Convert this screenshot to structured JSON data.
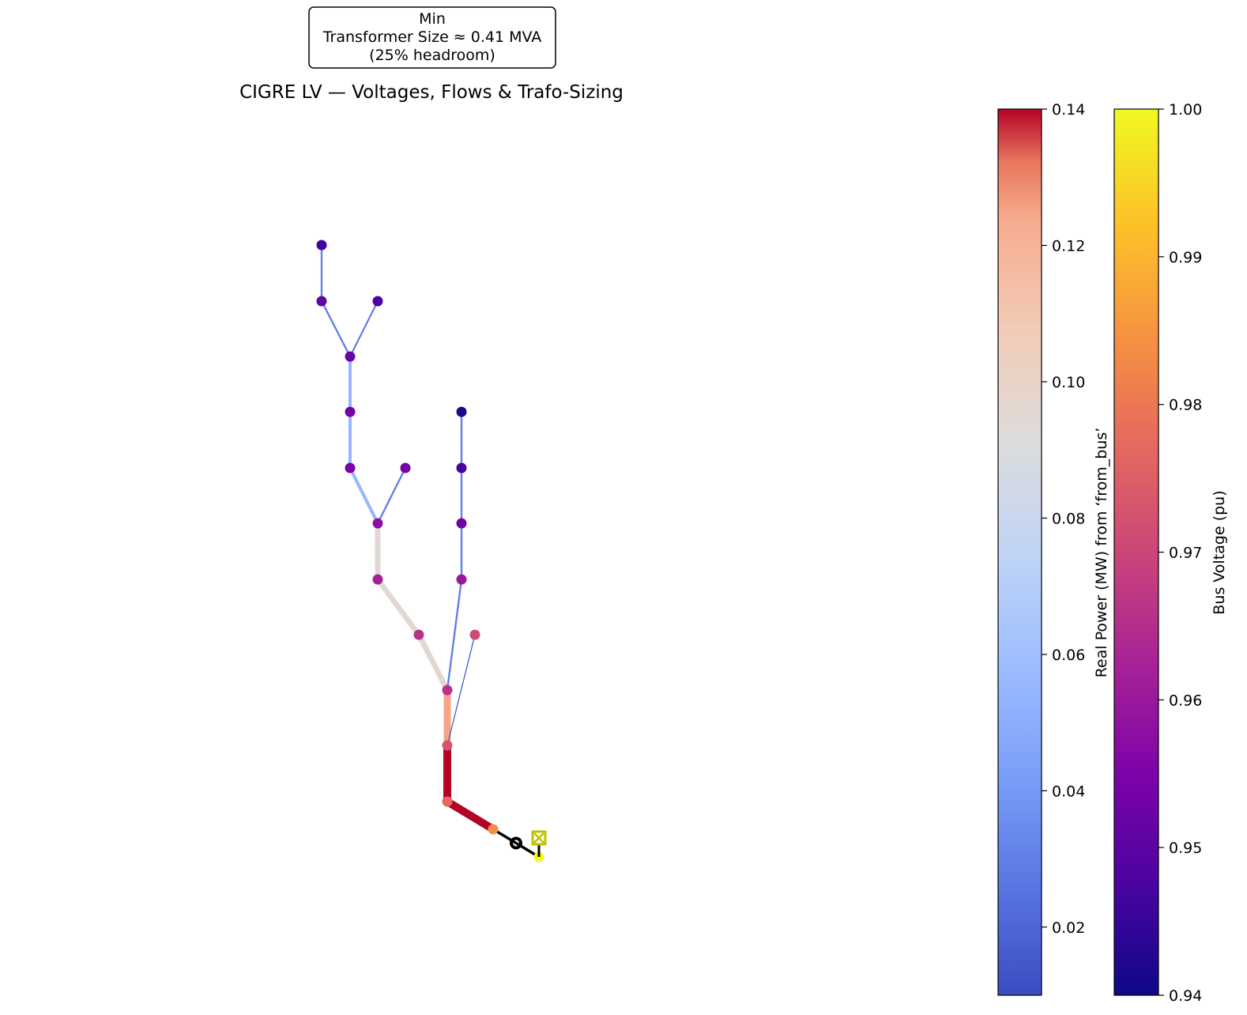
{
  "annotation": {
    "line1": "Min",
    "line2": "Transformer Size ≈ 0.41 MVA",
    "line3": "(25% headroom)"
  },
  "title": "CIGRE LV — Voltages, Flows & Trafo-Sizing",
  "colorbar_power": {
    "label": "Real Power (MW) from ‘from_bus’",
    "colormap": "coolwarm",
    "range": [
      0.01,
      0.14
    ],
    "ticks": [
      "0.02",
      "0.04",
      "0.06",
      "0.08",
      "0.10",
      "0.12",
      "0.14"
    ]
  },
  "colorbar_voltage": {
    "label": "Bus Voltage (pu)",
    "colormap": "plasma",
    "range": [
      0.94,
      1.0
    ],
    "ticks": [
      "0.94",
      "0.95",
      "0.96",
      "0.97",
      "0.98",
      "0.99",
      "1.00"
    ]
  },
  "network": {
    "lines": [
      {
        "from": "B22",
        "to": "B21",
        "p_mw": 0.03
      },
      {
        "from": "B21",
        "to": "B19",
        "p_mw": 0.03
      },
      {
        "from": "B20",
        "to": "B19",
        "p_mw": 0.025
      },
      {
        "from": "B19",
        "to": "B18",
        "p_mw": 0.055
      },
      {
        "from": "B18",
        "to": "B17",
        "p_mw": 0.055
      },
      {
        "from": "B17",
        "to": "B14",
        "p_mw": 0.055
      },
      {
        "from": "B16",
        "to": "B14",
        "p_mw": 0.03
      },
      {
        "from": "B14",
        "to": "B13",
        "p_mw": 0.095
      },
      {
        "from": "B13",
        "to": "B12",
        "p_mw": 0.095
      },
      {
        "from": "B12",
        "to": "B11",
        "p_mw": 0.095
      },
      {
        "from": "B10",
        "to": "B9",
        "p_mw": 0.03
      },
      {
        "from": "B9",
        "to": "B8",
        "p_mw": 0.03
      },
      {
        "from": "B8",
        "to": "B7",
        "p_mw": 0.03
      },
      {
        "from": "B7",
        "to": "B11",
        "p_mw": 0.03
      },
      {
        "from": "B11",
        "to": "B5",
        "p_mw": 0.125
      },
      {
        "from": "B6",
        "to": "B5",
        "p_mw": 0.015
      },
      {
        "from": "B5",
        "to": "B4",
        "p_mw": 0.14
      },
      {
        "from": "B4",
        "to": "B3",
        "p_mw": 0.14
      }
    ],
    "buses": [
      {
        "id": "B22",
        "vm_pu": 0.946
      },
      {
        "id": "B21",
        "vm_pu": 0.951
      },
      {
        "id": "B20",
        "vm_pu": 0.948
      },
      {
        "id": "B19",
        "vm_pu": 0.952
      },
      {
        "id": "B18",
        "vm_pu": 0.954
      },
      {
        "id": "B17",
        "vm_pu": 0.955
      },
      {
        "id": "B16",
        "vm_pu": 0.954
      },
      {
        "id": "B14",
        "vm_pu": 0.958
      },
      {
        "id": "B13",
        "vm_pu": 0.962
      },
      {
        "id": "B12",
        "vm_pu": 0.966
      },
      {
        "id": "B10",
        "vm_pu": 0.942
      },
      {
        "id": "B9",
        "vm_pu": 0.947
      },
      {
        "id": "B8",
        "vm_pu": 0.953
      },
      {
        "id": "B7",
        "vm_pu": 0.96
      },
      {
        "id": "B11",
        "vm_pu": 0.966
      },
      {
        "id": "B6",
        "vm_pu": 0.971
      },
      {
        "id": "B5",
        "vm_pu": 0.973
      },
      {
        "id": "B4",
        "vm_pu": 0.977
      },
      {
        "id": "B3",
        "vm_pu": 0.984
      },
      {
        "id": "B1",
        "vm_pu": 1.0
      }
    ],
    "trafo_connection": {
      "from": "B3",
      "to": "B1",
      "color": "#000000"
    },
    "ext_grid": {
      "bus": "B1",
      "color": "#c0c000"
    }
  }
}
